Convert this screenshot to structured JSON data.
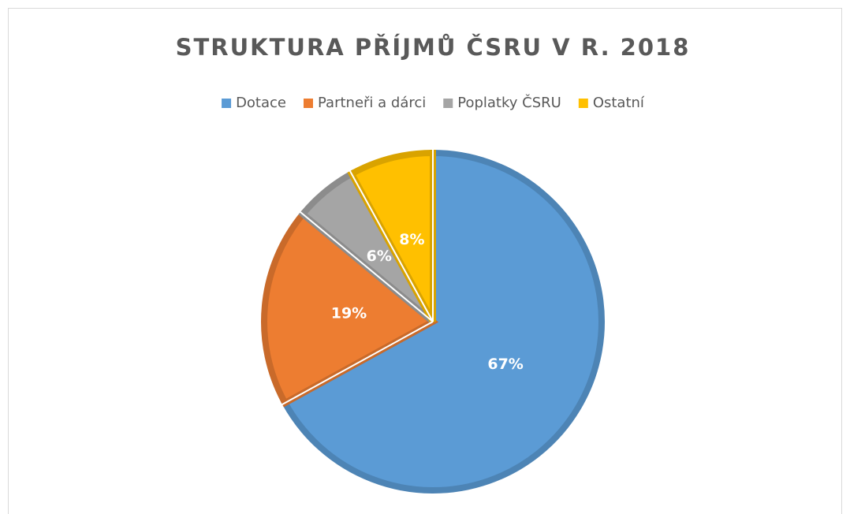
{
  "chart_data": {
    "type": "pie",
    "title": "STRUKTURA PŘÍJMŮ ČSRU V R. 2018",
    "categories": [
      "Dotace",
      "Partneři a dárci",
      "Poplatky ČSRU",
      "Ostatní"
    ],
    "values": [
      67,
      19,
      6,
      8
    ],
    "value_labels": [
      "67%",
      "19%",
      "6%",
      "8%"
    ],
    "colors": [
      "#5b9bd5",
      "#ed7d31",
      "#a5a5a5",
      "#ffc000"
    ],
    "legend": "top"
  }
}
